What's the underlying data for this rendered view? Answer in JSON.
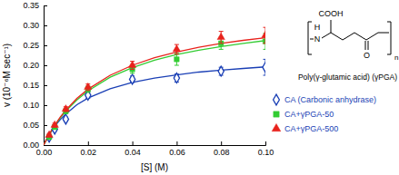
{
  "chart_data": {
    "type": "scatter",
    "xlabel": "[S] (M)",
    "ylabel": "v (10⁻⁶M sec⁻¹)",
    "xlim": [
      0,
      0.1
    ],
    "ylim": [
      0,
      0.35
    ],
    "xticks": [
      {
        "value": 0,
        "label": "0.00"
      },
      {
        "value": 0.02,
        "label": "0.02"
      },
      {
        "value": 0.04,
        "label": "0.04"
      },
      {
        "value": 0.06,
        "label": "0.06"
      },
      {
        "value": 0.08,
        "label": "0.08"
      },
      {
        "value": 0.1,
        "label": "0.10"
      }
    ],
    "yticks": [
      {
        "value": 0,
        "label": "0.00"
      },
      {
        "value": 0.05,
        "label": "0.05"
      },
      {
        "value": 0.1,
        "label": "0.10"
      },
      {
        "value": 0.15,
        "label": "0.15"
      },
      {
        "value": 0.2,
        "label": "0.20"
      },
      {
        "value": 0.25,
        "label": "0.25"
      },
      {
        "value": 0.3,
        "label": "0.30"
      },
      {
        "value": 0.35,
        "label": "0.35"
      }
    ],
    "grid": false,
    "legend": "right",
    "x": [
      0.0025,
      0.005,
      0.01,
      0.02,
      0.04,
      0.06,
      0.08,
      0.1
    ],
    "series": [
      {
        "name": "CA (Carbonic anhydrase)",
        "type": "scatter",
        "marker": "diamond-open",
        "color": "#1a3fb5",
        "values": [
          0.02,
          0.04,
          0.065,
          0.125,
          0.165,
          0.168,
          0.185,
          0.195
        ],
        "errors": [
          0.004,
          0.004,
          0.005,
          0.008,
          0.008,
          0.01,
          0.01,
          0.02
        ]
      },
      {
        "name": "CA+γPGA-50",
        "type": "scatter",
        "marker": "square",
        "color": "#33cc33",
        "values": [
          0.02,
          0.045,
          0.085,
          0.14,
          0.19,
          0.215,
          0.255,
          0.26
        ],
        "errors": [
          0.004,
          0.005,
          0.006,
          0.008,
          0.01,
          0.015,
          0.015,
          0.02
        ]
      },
      {
        "name": "CA+γPGA-500",
        "type": "scatter",
        "marker": "triangle",
        "color": "#e8221c",
        "values": [
          0.025,
          0.05,
          0.09,
          0.145,
          0.2,
          0.24,
          0.27,
          0.275
        ],
        "errors": [
          0.004,
          0.005,
          0.006,
          0.008,
          0.01,
          0.012,
          0.015,
          0.02
        ]
      },
      {
        "type": "line",
        "color": "#1a3fb5",
        "x": [
          0,
          0.0025,
          0.005,
          0.0075,
          0.01,
          0.015,
          0.02,
          0.03,
          0.04,
          0.05,
          0.06,
          0.07,
          0.08,
          0.09,
          0.1
        ],
        "values": [
          0,
          0.026,
          0.047,
          0.064,
          0.078,
          0.101,
          0.118,
          0.141,
          0.157,
          0.168,
          0.176,
          0.183,
          0.188,
          0.192,
          0.196
        ]
      },
      {
        "type": "line",
        "color": "#33cc33",
        "x": [
          0,
          0.0025,
          0.005,
          0.0075,
          0.01,
          0.015,
          0.02,
          0.03,
          0.04,
          0.05,
          0.06,
          0.07,
          0.08,
          0.09,
          0.1
        ],
        "values": [
          0,
          0.026,
          0.049,
          0.068,
          0.085,
          0.113,
          0.136,
          0.17,
          0.194,
          0.213,
          0.227,
          0.238,
          0.247,
          0.255,
          0.262
        ]
      },
      {
        "type": "line",
        "color": "#e8221c",
        "x": [
          0,
          0.0025,
          0.005,
          0.0075,
          0.01,
          0.015,
          0.02,
          0.03,
          0.04,
          0.05,
          0.06,
          0.07,
          0.08,
          0.09,
          0.1
        ],
        "values": [
          0,
          0.027,
          0.05,
          0.07,
          0.0875,
          0.117,
          0.14,
          0.175,
          0.2,
          0.219,
          0.233,
          0.245,
          0.255,
          0.2625,
          0.269
        ]
      }
    ],
    "annotations": [
      "COOH",
      "H",
      "N",
      "O",
      "n",
      "Poly(γ-glutamic acid) (γPGA)"
    ]
  }
}
